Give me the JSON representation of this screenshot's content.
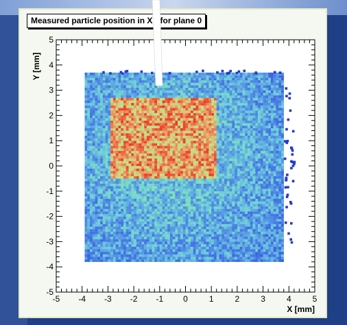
{
  "chart_data": {
    "type": "heatmap",
    "title": "Measured particle position in XY for plane 0",
    "xlabel": "X [mm]",
    "ylabel": "Y [mm]",
    "xlim": [
      -5,
      5
    ],
    "ylim": [
      -5,
      5
    ],
    "x_ticks": [
      -5,
      -4,
      -3,
      -2,
      -1,
      0,
      1,
      2,
      3,
      4,
      5
    ],
    "y_ticks": [
      -5,
      -4,
      -3,
      -2,
      -1,
      0,
      1,
      2,
      3,
      4,
      5
    ],
    "grid": false,
    "legend": "none",
    "regions": [
      {
        "name": "detector-area",
        "x": [
          -3.9,
          3.8
        ],
        "y": [
          -3.8,
          3.7
        ],
        "intensity": 0.3
      },
      {
        "name": "high-density-region",
        "x": [
          -2.9,
          1.2
        ],
        "y": [
          -0.5,
          2.7
        ],
        "intensity": 0.85
      }
    ],
    "colors": {
      "low": "#2a4fcf",
      "mid": "#7fe6a6",
      "high": "#ef4a2e",
      "frame_bg": "#f5f8f1",
      "slide_bg": "#1f3f86"
    }
  }
}
